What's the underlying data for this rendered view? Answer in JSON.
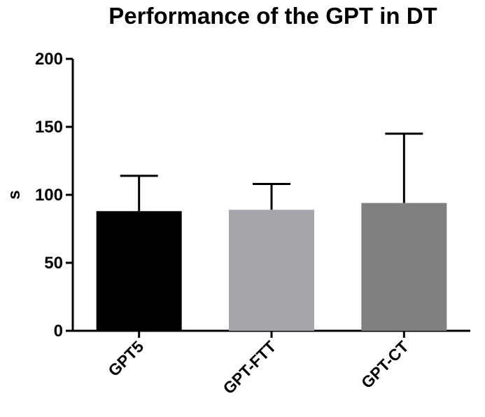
{
  "chart_data": {
    "type": "bar",
    "title": "Performance of the GPT in DT",
    "xlabel": "",
    "ylabel": "s",
    "ylim": [
      0,
      200
    ],
    "yticks": [
      0,
      50,
      100,
      150,
      200
    ],
    "categories": [
      "GPT5",
      "GPT-FTT",
      "GPT-CT"
    ],
    "values": [
      88,
      89,
      94
    ],
    "error_upper": [
      26,
      19,
      51
    ],
    "colors": [
      "#000000",
      "#a5a5aa",
      "#808080"
    ],
    "grid": false,
    "legend": "none"
  }
}
